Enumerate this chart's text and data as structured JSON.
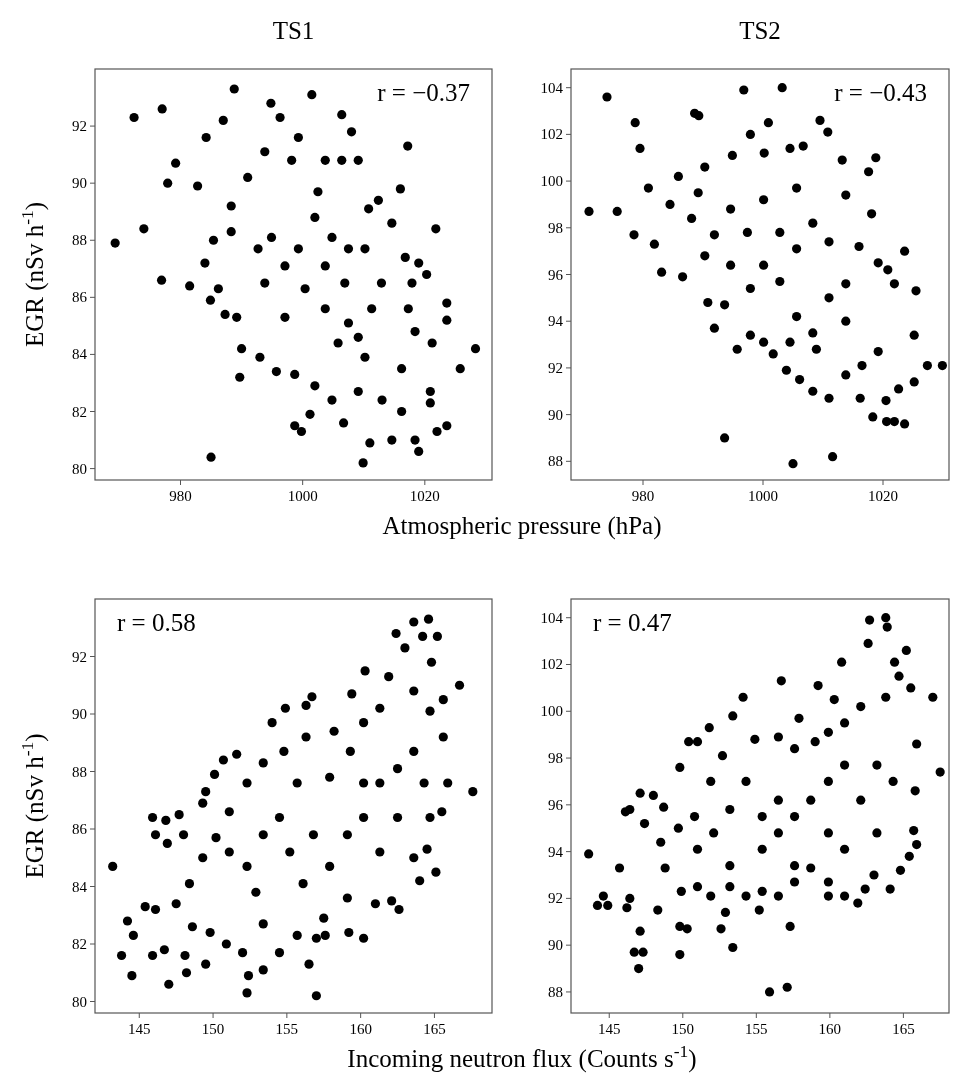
{
  "chart_data": [
    {
      "type": "scatter",
      "title": "TS1",
      "ylabel": "EGR (nSv h$^{-1}$)",
      "xlabel": "Atmospheric pressure (hPa)",
      "color": "#000000",
      "marker": "circle",
      "xlim": [
        966,
        1031
      ],
      "ylim": [
        79.6,
        94
      ],
      "xticks": [
        980,
        1000,
        1020
      ],
      "yticks": [
        80,
        82,
        84,
        86,
        88,
        90,
        92
      ],
      "annotations": [
        "r = −0.37"
      ],
      "x": [
        969.3,
        972.4,
        974.0,
        977.0,
        976.9,
        977.9,
        979.2,
        981.5,
        982.8,
        984.2,
        984.9,
        985.0,
        987.0,
        988.8,
        989.7,
        987.3,
        994.8,
        996.3,
        1001.5,
        1006.4,
        1008.0,
        1017.2,
        1016.0,
        1021.8,
        1020.3,
        1023.6,
        1023.6,
        1028.3,
        1025.8,
        1023.6,
        1022.0,
        1019.0,
        1018.4,
        1014.6,
        1011.0,
        1009.9,
        1006.7,
        999.8,
        998.7,
        1001.2,
        1020.9,
        1020.9,
        1016.2,
        995.7,
        993.0,
        990.0,
        989.2,
        986.2,
        984.0,
        985.4,
        988.3,
        988.3,
        991.0,
        993.8,
        998.2,
        999.3,
        1003.7,
        1006.4,
        1009.1,
        1012.4,
        1014.6,
        1016.8,
        1019.0,
        1017.9,
        1017.3,
        1018.4,
        1021.2,
        1016.2,
        1013.0,
        1009.1,
        1004.8,
        1002.0,
        998.7,
        1002.0,
        1004.8,
        1003.7,
        1006.9,
        1007.5,
        1009.1,
        1010.2,
        1005.8,
        1003.7,
        1000.4,
        997.1,
        994.9,
        999.3,
        1002.5,
        1011.3,
        1012.9,
        997.1,
        993.8,
        992.7,
        1007.5,
        1010.2,
        1010.8
      ],
      "values": [
        87.9,
        92.3,
        88.4,
        92.6,
        86.6,
        90.0,
        90.7,
        86.4,
        89.9,
        91.6,
        85.9,
        80.4,
        92.2,
        93.3,
        83.2,
        85.4,
        92.8,
        92.3,
        93.1,
        92.4,
        91.8,
        91.3,
        89.8,
        88.4,
        86.8,
        85.8,
        85.2,
        84.2,
        83.5,
        81.5,
        81.3,
        80.6,
        81.0,
        81.0,
        80.9,
        80.2,
        81.6,
        81.3,
        81.5,
        81.9,
        82.3,
        82.7,
        82.0,
        83.4,
        83.9,
        84.2,
        85.3,
        86.3,
        87.2,
        88.0,
        88.3,
        89.2,
        90.2,
        91.1,
        90.8,
        91.6,
        90.8,
        90.8,
        90.8,
        89.4,
        88.6,
        87.4,
        87.2,
        86.5,
        85.6,
        84.8,
        84.4,
        83.5,
        82.4,
        82.7,
        82.4,
        82.9,
        83.3,
        88.8,
        88.1,
        87.1,
        86.5,
        85.1,
        84.6,
        83.9,
        84.4,
        85.6,
        86.3,
        87.1,
        88.1,
        87.7,
        89.7,
        85.6,
        86.5,
        85.3,
        86.5,
        87.7,
        87.7,
        87.7,
        89.1
      ]
    },
    {
      "type": "scatter",
      "title": "TS2",
      "color": "#000000",
      "marker": "circle",
      "xlim": [
        968,
        1031
      ],
      "ylim": [
        87.2,
        104.8
      ],
      "xticks": [
        980,
        1000,
        1020
      ],
      "yticks": [
        88,
        90,
        92,
        94,
        96,
        98,
        100,
        102,
        104
      ],
      "annotations": [
        "r = −0.43"
      ],
      "x": [
        971.0,
        974.0,
        975.7,
        978.5,
        978.7,
        979.5,
        980.9,
        981.9,
        983.1,
        985.9,
        984.5,
        986.6,
        988.6,
        989.3,
        993.6,
        991.9,
        995.7,
        996.8,
        1003.2,
        997.9,
        1000.9,
        1005.0,
        1011.6,
        1009.5,
        1010.8,
        1018.8,
        1017.6,
        1018.1,
        1023.6,
        1025.5,
        1027.4,
        1029.9,
        1023.6,
        1021.9,
        1020.6,
        1018.3,
        1020.5,
        1025.2,
        1025.2,
        1022.6,
        1016.2,
        1011.0,
        1008.3,
        1003.9,
        1006.1,
        1021.9,
        1020.8,
        1019.2,
        1016.0,
        1013.8,
        1013.2,
        1006.7,
        1004.5,
        1000.2,
        994.9,
        990.3,
        989.2,
        988.1,
        990.3,
        990.8,
        993.6,
        997.9,
        1000.1,
        1001.7,
        1019.2,
        1016.5,
        1013.8,
        1002.8,
        1005.6,
        1002.8,
        1005.6,
        1008.3,
        1011.0,
        1000.1,
        997.4,
        994.6,
        1000.1,
        1005.6,
        1008.3,
        1011.0,
        1013.8,
        1013.8,
        1008.9,
        1004.5,
        997.9,
        994.6,
        991.9
      ],
      "values": [
        98.7,
        103.6,
        98.7,
        97.7,
        102.5,
        101.4,
        99.7,
        97.3,
        96.1,
        100.2,
        99.0,
        95.9,
        102.9,
        102.8,
        89.0,
        93.7,
        92.8,
        103.9,
        104.0,
        102.0,
        102.5,
        87.9,
        88.2,
        102.6,
        102.1,
        101.0,
        100.4,
        98.6,
        97.0,
        95.3,
        92.1,
        92.1,
        89.6,
        89.7,
        89.7,
        89.9,
        90.6,
        91.4,
        93.4,
        91.1,
        90.7,
        90.7,
        91.0,
        91.9,
        91.5,
        95.6,
        96.2,
        96.5,
        97.2,
        99.4,
        100.9,
        101.5,
        101.4,
        101.2,
        101.1,
        100.6,
        99.5,
        98.4,
        96.8,
        94.8,
        94.7,
        93.4,
        93.1,
        92.6,
        92.7,
        92.1,
        91.7,
        97.8,
        97.1,
        95.7,
        94.2,
        93.5,
        95.0,
        96.4,
        97.8,
        98.8,
        99.2,
        99.7,
        98.2,
        97.4,
        95.6,
        94.0,
        92.8,
        93.1,
        95.4,
        96.4,
        97.7
      ]
    },
    {
      "type": "scatter",
      "ylabel": "EGR (nSv h$^{-1}$)",
      "xlabel": "Incoming neutron flux (Counts s$^{-1}$)",
      "color": "#000000",
      "marker": "circle",
      "xlim": [
        142,
        168.9
      ],
      "ylim": [
        79.6,
        94
      ],
      "xticks": [
        145,
        150,
        155,
        160,
        165
      ],
      "yticks": [
        80,
        82,
        84,
        86,
        88,
        90,
        92
      ],
      "annotations": [
        "r = 0.58"
      ],
      "x": [
        143.2,
        143.8,
        144.5,
        144.2,
        144.6,
        145.4,
        145.9,
        146.1,
        145.9,
        146.1,
        146.8,
        146.9,
        147.0,
        146.7,
        147.7,
        148.0,
        148.1,
        148.2,
        147.5,
        149.3,
        149.5,
        149.5,
        150.1,
        150.7,
        151.6,
        152.3,
        152.4,
        153.4,
        154.0,
        154.9,
        156.3,
        156.7,
        156.5,
        157.0,
        157.0,
        157.6,
        158.2,
        159.4,
        160.3,
        160.2,
        161.9,
        162.4,
        163.0,
        163.6,
        164.2,
        164.6,
        165.2,
        164.8,
        165.6,
        166.7,
        167.6,
        165.5,
        165.1,
        164.5,
        164.0,
        163.6,
        162.6,
        162.1,
        161.0,
        159.1,
        159.2,
        157.5,
        155.7,
        154.5,
        153.4,
        152.0,
        150.9,
        149.8,
        148.6,
        148.4,
        149.3,
        150.2,
        151.1,
        152.3,
        153.4,
        154.8,
        156.3,
        157.9,
        159.3,
        160.2,
        161.3,
        163.6,
        164.7,
        165.6,
        165.9,
        151.1,
        152.3,
        153.4,
        154.5,
        155.7,
        155.2,
        156.8,
        156.1,
        157.9,
        152.9,
        159.1,
        160.2,
        161.3,
        162.5,
        163.6,
        164.3,
        164.7,
        162.5,
        161.3,
        160.2
      ],
      "values": [
        84.7,
        81.6,
        80.9,
        82.8,
        82.3,
        83.3,
        86.4,
        85.8,
        81.6,
        83.2,
        86.3,
        85.5,
        80.6,
        81.8,
        86.5,
        85.8,
        81.6,
        81.0,
        83.4,
        86.9,
        87.3,
        81.3,
        87.9,
        88.4,
        88.6,
        80.3,
        80.9,
        81.1,
        89.7,
        90.2,
        90.3,
        90.6,
        81.3,
        80.2,
        82.2,
        82.3,
        89.4,
        90.7,
        91.5,
        82.2,
        91.3,
        92.8,
        92.3,
        93.2,
        92.7,
        93.3,
        92.7,
        91.8,
        90.5,
        91.0,
        87.3,
        86.6,
        84.5,
        85.3,
        84.2,
        85.0,
        83.2,
        83.5,
        83.4,
        83.6,
        82.4,
        82.9,
        82.3,
        81.7,
        82.7,
        81.7,
        82.0,
        82.4,
        82.6,
        84.1,
        85.0,
        85.7,
        86.6,
        87.6,
        88.3,
        88.7,
        89.2,
        87.8,
        88.7,
        89.7,
        90.2,
        90.8,
        90.1,
        89.2,
        87.6,
        85.2,
        84.7,
        85.8,
        86.4,
        87.6,
        85.2,
        85.8,
        84.1,
        84.7,
        83.8,
        85.8,
        86.4,
        87.6,
        88.1,
        88.7,
        87.6,
        86.4,
        86.4,
        85.2,
        87.6
      ]
    },
    {
      "type": "scatter",
      "color": "#000000",
      "marker": "circle",
      "xlim": [
        142.4,
        168.1
      ],
      "ylim": [
        87.1,
        104.8
      ],
      "xticks": [
        145,
        150,
        155,
        160,
        165
      ],
      "yticks": [
        88,
        90,
        92,
        94,
        96,
        98,
        100,
        102,
        104
      ],
      "annotations": [
        "r = 0.47"
      ],
      "x": [
        143.6,
        144.2,
        144.6,
        144.9,
        145.7,
        146.1,
        146.4,
        146.2,
        146.4,
        146.7,
        147.0,
        147.3,
        147.1,
        147.1,
        147.4,
        148.0,
        148.7,
        148.3,
        149.8,
        149.8,
        150.3,
        149.8,
        150.4,
        151.0,
        151.8,
        152.6,
        152.9,
        153.4,
        153.4,
        154.1,
        155.2,
        155.9,
        157.1,
        156.7,
        157.3,
        157.9,
        159.2,
        160.3,
        160.8,
        161.9,
        161.0,
        159.9,
        162.7,
        163.8,
        163.9,
        162.6,
        165.2,
        164.4,
        164.7,
        165.5,
        167.0,
        167.5,
        165.9,
        165.8,
        165.7,
        165.9,
        165.4,
        164.8,
        164.1,
        163.0,
        162.4,
        159.9,
        158.7,
        157.6,
        156.5,
        155.4,
        154.3,
        153.2,
        151.9,
        151.0,
        149.9,
        148.8,
        148.5,
        149.7,
        150.8,
        151.9,
        152.7,
        154.9,
        156.5,
        157.6,
        159.0,
        159.9,
        161.0,
        162.1,
        163.8,
        151.0,
        152.1,
        153.2,
        154.3,
        155.4,
        155.4,
        156.5,
        156.5,
        157.6,
        158.7,
        159.9,
        159.9,
        161.0,
        162.1,
        163.2,
        164.3,
        163.2,
        161.0,
        153.2,
        157.6
      ],
      "values": [
        93.9,
        91.7,
        92.1,
        91.7,
        93.3,
        95.7,
        95.8,
        91.6,
        92.0,
        89.7,
        89.0,
        89.7,
        90.6,
        96.5,
        95.2,
        96.4,
        95.9,
        91.5,
        89.6,
        90.8,
        90.7,
        97.6,
        98.7,
        98.7,
        99.3,
        90.7,
        91.4,
        89.9,
        99.8,
        100.6,
        91.5,
        88.0,
        88.2,
        101.3,
        90.8,
        99.7,
        101.1,
        100.5,
        102.1,
        91.8,
        92.1,
        92.1,
        103.9,
        104.0,
        103.6,
        102.9,
        102.6,
        102.1,
        101.5,
        101.0,
        100.6,
        97.4,
        98.6,
        96.6,
        94.9,
        94.3,
        93.8,
        93.2,
        92.4,
        93.0,
        92.4,
        92.7,
        93.3,
        92.7,
        92.1,
        92.3,
        92.1,
        92.5,
        92.1,
        92.5,
        92.3,
        93.3,
        94.4,
        95.0,
        95.5,
        97.0,
        98.1,
        98.8,
        98.9,
        98.4,
        98.7,
        99.1,
        99.5,
        100.2,
        100.6,
        94.1,
        94.8,
        95.8,
        97.0,
        95.5,
        94.1,
        94.8,
        96.2,
        95.5,
        96.2,
        94.8,
        97.0,
        97.7,
        96.2,
        97.7,
        97.0,
        94.8,
        94.1,
        93.4,
        93.4
      ]
    }
  ]
}
